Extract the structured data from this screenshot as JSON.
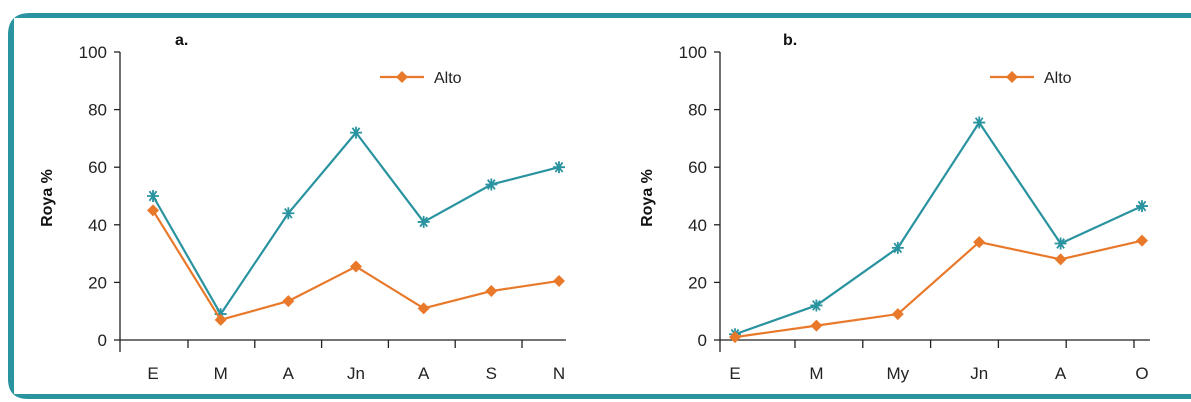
{
  "colors": {
    "frame": "#2a93a0",
    "series_high": "#e8792b",
    "series_other": "#2a93a0",
    "axis": "#222222"
  },
  "chart_data": [
    {
      "type": "line",
      "panel_label": "a.",
      "ylabel": "Roya %",
      "ylim": [
        0,
        100
      ],
      "yticks": [
        0,
        20,
        40,
        60,
        80,
        100
      ],
      "categories": [
        "E",
        "M",
        "A",
        "Jn",
        "A",
        "S",
        "N"
      ],
      "legend": {
        "position": "top-right",
        "entries": [
          "Alto"
        ]
      },
      "series": [
        {
          "name": "Alto",
          "marker": "diamond",
          "color": "#e8792b",
          "values": [
            45,
            7,
            13.5,
            25.5,
            11,
            17,
            20.5
          ]
        },
        {
          "marker": "asterisk",
          "color": "#2a93a0",
          "values": [
            50,
            9,
            44,
            72,
            41,
            54,
            60
          ]
        }
      ]
    },
    {
      "type": "line",
      "panel_label": "b.",
      "ylabel": "Roya %",
      "ylim": [
        0,
        100
      ],
      "yticks": [
        0,
        20,
        40,
        60,
        80,
        100
      ],
      "categories": [
        "E",
        "M",
        "My",
        "Jn",
        "A",
        "O"
      ],
      "legend": {
        "position": "top-right",
        "entries": [
          "Alto"
        ]
      },
      "series": [
        {
          "name": "Alto",
          "marker": "diamond",
          "color": "#e8792b",
          "values": [
            1,
            5,
            9,
            34,
            28,
            34.5
          ]
        },
        {
          "marker": "asterisk",
          "color": "#2a93a0",
          "values": [
            2,
            12,
            32,
            75.5,
            33.5,
            46.5
          ]
        }
      ]
    }
  ]
}
